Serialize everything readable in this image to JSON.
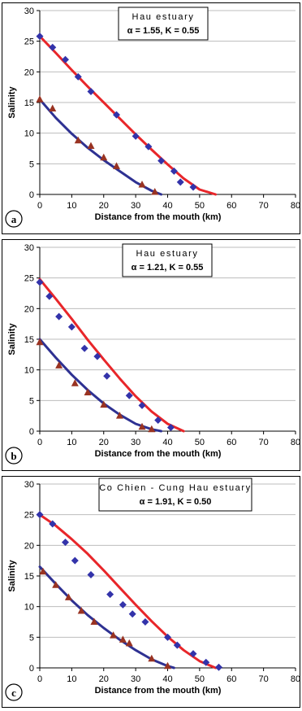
{
  "chart_data": [
    {
      "type": "scatter",
      "panel_label": "a",
      "annotation_title": "Hau estuary",
      "annotation_params": "α = 1.55, K = 0.55",
      "xlabel": "Distance from the mouth (km)",
      "ylabel": "Salinity",
      "xlim": [
        0,
        80
      ],
      "ylim": [
        0,
        30
      ],
      "xticks": [
        0,
        10,
        20,
        30,
        40,
        50,
        60,
        70,
        80
      ],
      "yticks": [
        0,
        5,
        10,
        15,
        20,
        25,
        30
      ],
      "grid": "horizontal",
      "series": [
        {
          "marker": "diamond",
          "color": "#3333aa",
          "points": [
            [
              0,
              25.8
            ],
            [
              4,
              24
            ],
            [
              8,
              22
            ],
            [
              12,
              19.2
            ],
            [
              16,
              16.8
            ],
            [
              24,
              13
            ],
            [
              30,
              9.5
            ],
            [
              34,
              7.8
            ],
            [
              38,
              5.5
            ],
            [
              42,
              3.8
            ],
            [
              44,
              2
            ],
            [
              48,
              1.2
            ]
          ]
        },
        {
          "marker": "triangle",
          "color": "#993322",
          "points": [
            [
              0,
              15.5
            ],
            [
              4,
              14
            ],
            [
              12,
              8.8
            ],
            [
              16,
              7.9
            ],
            [
              20,
              6
            ],
            [
              24,
              4.6
            ],
            [
              32,
              1.6
            ],
            [
              36,
              0.4
            ]
          ]
        }
      ],
      "fits": [
        {
          "color": "#e8262a",
          "x": [
            0,
            5,
            10,
            15,
            20,
            25,
            30,
            35,
            40,
            45,
            50,
            55
          ],
          "y": [
            25.8,
            23.1,
            20.3,
            17.6,
            15,
            12.4,
            9.8,
            7.3,
            4.9,
            2.6,
            0.8,
            0
          ]
        },
        {
          "color": "#2e3192",
          "x": [
            0,
            5,
            10,
            15,
            20,
            25,
            30,
            35,
            38
          ],
          "y": [
            15.5,
            12.5,
            9.9,
            7.6,
            5.6,
            3.8,
            2,
            0.6,
            0
          ]
        }
      ]
    },
    {
      "type": "scatter",
      "panel_label": "b",
      "annotation_title": "Hau estuary",
      "annotation_params": "α = 1.21, K = 0.55",
      "xlabel": "Distance from the mouth (km)",
      "ylabel": "Salinity",
      "xlim": [
        0,
        80
      ],
      "ylim": [
        0,
        30
      ],
      "xticks": [
        0,
        10,
        20,
        30,
        40,
        50,
        60,
        70,
        80
      ],
      "yticks": [
        0,
        5,
        10,
        15,
        20,
        25,
        30
      ],
      "grid": "horizontal",
      "series": [
        {
          "marker": "diamond",
          "color": "#3333aa",
          "points": [
            [
              0,
              24.3
            ],
            [
              3,
              22
            ],
            [
              6,
              18.7
            ],
            [
              10,
              17
            ],
            [
              14,
              13.5
            ],
            [
              18,
              12.2
            ],
            [
              21,
              9
            ],
            [
              28,
              5.8
            ],
            [
              32,
              4.2
            ],
            [
              37,
              1.8
            ],
            [
              41,
              0.6
            ]
          ]
        },
        {
          "marker": "triangle",
          "color": "#993322",
          "points": [
            [
              0,
              14.5
            ],
            [
              6,
              10.7
            ],
            [
              11,
              7.8
            ],
            [
              15,
              6.3
            ],
            [
              20,
              4.3
            ],
            [
              25,
              2.5
            ],
            [
              32,
              0.7
            ],
            [
              35,
              0.3
            ]
          ]
        }
      ],
      "fits": [
        {
          "color": "#e8262a",
          "x": [
            0,
            5,
            10,
            15,
            20,
            25,
            30,
            35,
            40,
            45
          ],
          "y": [
            24.8,
            21.6,
            18.3,
            14.9,
            11.7,
            8.6,
            5.7,
            3.2,
            1.2,
            0
          ]
        },
        {
          "color": "#2e3192",
          "x": [
            0,
            5,
            10,
            15,
            20,
            25,
            30,
            35,
            38
          ],
          "y": [
            15,
            12,
            9.2,
            6.7,
            4.5,
            2.7,
            1.2,
            0.3,
            0
          ]
        }
      ]
    },
    {
      "type": "scatter",
      "panel_label": "c",
      "annotation_title": "Co Chien - Cung Hau estuary",
      "annotation_params": "α = 1.91, K = 0.50",
      "xlabel": "Distance from the mouth (km)",
      "ylabel": "Salinity",
      "xlim": [
        0,
        80
      ],
      "ylim": [
        0,
        30
      ],
      "xticks": [
        0,
        10,
        20,
        30,
        40,
        50,
        60,
        70,
        80
      ],
      "yticks": [
        0,
        5,
        10,
        15,
        20,
        25,
        30
      ],
      "grid": "horizontal",
      "series": [
        {
          "marker": "diamond",
          "color": "#3333aa",
          "points": [
            [
              0,
              25
            ],
            [
              4,
              23.5
            ],
            [
              8,
              20.5
            ],
            [
              11,
              17.5
            ],
            [
              16,
              15.2
            ],
            [
              22,
              12
            ],
            [
              26,
              10.3
            ],
            [
              29,
              8.8
            ],
            [
              33,
              7.5
            ],
            [
              40,
              5
            ],
            [
              43,
              3.7
            ],
            [
              48,
              2.3
            ],
            [
              52,
              0.9
            ],
            [
              56,
              0.1
            ]
          ]
        },
        {
          "marker": "triangle",
          "color": "#993322",
          "points": [
            [
              1,
              15.7
            ],
            [
              5,
              13.5
            ],
            [
              9,
              11.5
            ],
            [
              13,
              9.3
            ],
            [
              17,
              7.5
            ],
            [
              23,
              5.3
            ],
            [
              26,
              4.6
            ],
            [
              28,
              4
            ],
            [
              35,
              1.5
            ],
            [
              40,
              0.3
            ]
          ]
        }
      ],
      "fits": [
        {
          "color": "#e8262a",
          "x": [
            0,
            5,
            10,
            15,
            20,
            25,
            30,
            35,
            40,
            45,
            50,
            55
          ],
          "y": [
            25,
            23.2,
            21,
            18.6,
            15.9,
            13.1,
            10.3,
            7.6,
            5.1,
            2.9,
            1.1,
            0
          ]
        },
        {
          "color": "#2e3192",
          "x": [
            0,
            5,
            10,
            15,
            20,
            25,
            30,
            35,
            40,
            42
          ],
          "y": [
            16.5,
            13.7,
            11,
            8.6,
            6.5,
            4.6,
            2.9,
            1.4,
            0.3,
            0
          ]
        }
      ]
    }
  ]
}
